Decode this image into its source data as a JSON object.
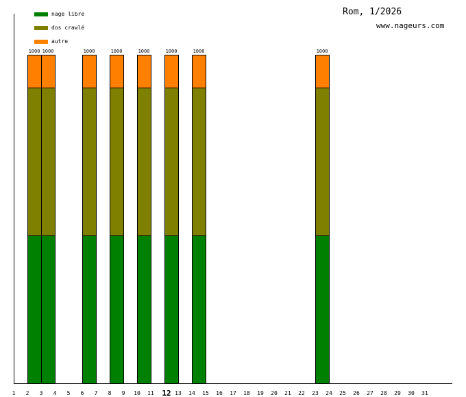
{
  "chart_data": {
    "type": "bar",
    "stacked": true,
    "title": "Rom, 1/2026",
    "subtitle": "www.nageurs.com",
    "highlight_day": "12",
    "categories": [
      "1",
      "2",
      "3",
      "4",
      "5",
      "6",
      "7",
      "8",
      "9",
      "10",
      "11",
      "12",
      "13",
      "14",
      "15",
      "16",
      "17",
      "18",
      "19",
      "20",
      "21",
      "22",
      "23",
      "24",
      "25",
      "26",
      "27",
      "28",
      "29",
      "30",
      "31"
    ],
    "series": [
      {
        "name": "nage libre",
        "color": "#008000",
        "values": [
          0,
          450,
          450,
          0,
          0,
          450,
          0,
          450,
          0,
          450,
          0,
          450,
          0,
          450,
          0,
          0,
          0,
          0,
          0,
          0,
          0,
          0,
          450,
          0,
          0,
          0,
          0,
          0,
          0,
          0,
          0
        ]
      },
      {
        "name": "dos crawlé",
        "color": "#808000",
        "values": [
          0,
          450,
          450,
          0,
          0,
          450,
          0,
          450,
          0,
          450,
          0,
          450,
          0,
          450,
          0,
          0,
          0,
          0,
          0,
          0,
          0,
          0,
          450,
          0,
          0,
          0,
          0,
          0,
          0,
          0,
          0
        ]
      },
      {
        "name": "autre",
        "color": "#ff8000",
        "values": [
          0,
          100,
          100,
          0,
          0,
          100,
          0,
          100,
          0,
          100,
          0,
          100,
          0,
          100,
          0,
          0,
          0,
          0,
          0,
          0,
          0,
          0,
          100,
          0,
          0,
          0,
          0,
          0,
          0,
          0,
          0
        ]
      }
    ],
    "totals": [
      0,
      1000,
      1000,
      0,
      0,
      1000,
      0,
      1000,
      0,
      1000,
      0,
      1000,
      0,
      1000,
      0,
      0,
      0,
      0,
      0,
      0,
      0,
      0,
      1000,
      0,
      0,
      0,
      0,
      0,
      0,
      0,
      0
    ],
    "ylim": [
      0,
      1000
    ],
    "xlabel": "",
    "ylabel": "",
    "grid": false,
    "legend": "top-left"
  }
}
